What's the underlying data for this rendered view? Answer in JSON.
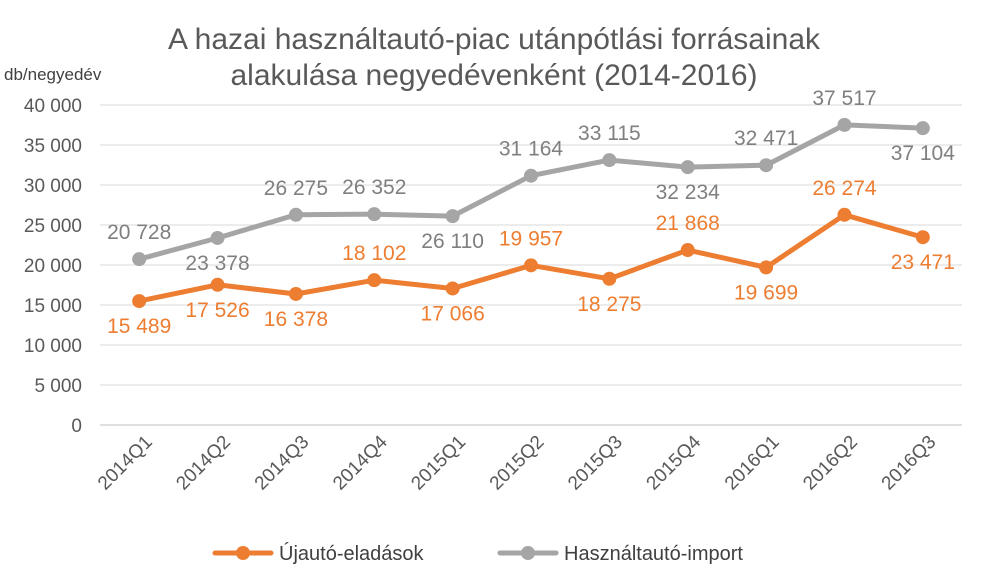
{
  "chart_data": {
    "type": "line",
    "title_lines": [
      "A hazai használtautó-piac utánpótlási forrásainak",
      "alakulása negyedévenként (2014-2016)"
    ],
    "ylabel": "db/negyedév",
    "ylim": [
      0,
      40000
    ],
    "y_ticks": [
      0,
      5000,
      10000,
      15000,
      20000,
      25000,
      30000,
      35000,
      40000
    ],
    "y_tick_labels": [
      "0",
      "5 000",
      "10 000",
      "15 000",
      "20 000",
      "25 000",
      "30 000",
      "35 000",
      "40 000"
    ],
    "grid": true,
    "legend_position": "bottom",
    "categories": [
      "2014Q1",
      "2014Q2",
      "2014Q3",
      "2014Q4",
      "2015Q1",
      "2015Q2",
      "2015Q3",
      "2015Q4",
      "2016Q1",
      "2016Q2",
      "2016Q3"
    ],
    "series": [
      {
        "name": "Újautó-eladások",
        "color": "#ED7D31",
        "values": [
          15489,
          17526,
          16378,
          18102,
          17066,
          19957,
          18275,
          21868,
          19699,
          26274,
          23471
        ],
        "labels": [
          "15 489",
          "17 526",
          "16 378",
          "18 102",
          "17 066",
          "19 957",
          "18 275",
          "21 868",
          "19 699",
          "26 274",
          "23 471"
        ],
        "label_pos": [
          "below",
          "below",
          "below",
          "above",
          "below",
          "above",
          "below",
          "above",
          "below",
          "above",
          "below"
        ]
      },
      {
        "name": "Használtautó-import",
        "color": "#A5A5A5",
        "values": [
          20728,
          23378,
          26275,
          26352,
          26110,
          31164,
          33115,
          32234,
          32471,
          37517,
          37104
        ],
        "labels": [
          "20 728",
          "23 378",
          "26 275",
          "26 352",
          "26 110",
          "31 164",
          "33 115",
          "32 234",
          "32 471",
          "37 517",
          "37 104"
        ],
        "label_pos": [
          "above",
          "below",
          "above",
          "above",
          "below",
          "above",
          "above",
          "below",
          "above",
          "above",
          "below"
        ]
      }
    ]
  }
}
